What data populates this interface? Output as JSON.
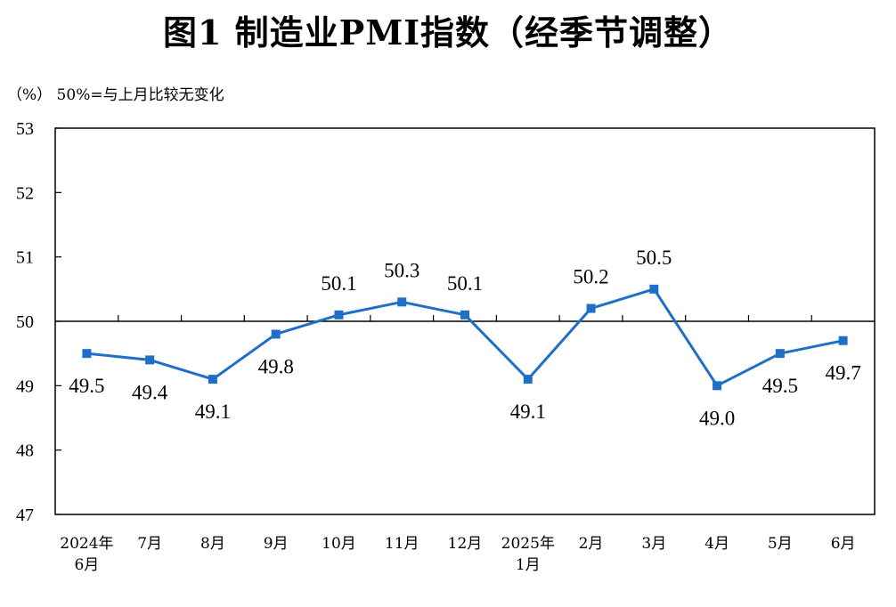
{
  "title": "图1  制造业PMI指数（经季节调整）",
  "note": "（%）  50%=与上月比较无变化",
  "chart_data": {
    "type": "line",
    "categories": [
      [
        "2024年",
        "6月"
      ],
      [
        "7月"
      ],
      [
        "8月"
      ],
      [
        "9月"
      ],
      [
        "10月"
      ],
      [
        "11月"
      ],
      [
        "12月"
      ],
      [
        "2025年",
        "1月"
      ],
      [
        "2月"
      ],
      [
        "3月"
      ],
      [
        "4月"
      ],
      [
        "5月"
      ],
      [
        "6月"
      ]
    ],
    "values": [
      49.5,
      49.4,
      49.1,
      49.8,
      50.1,
      50.3,
      50.1,
      49.1,
      50.2,
      50.5,
      49.0,
      49.5,
      49.7
    ],
    "labels": [
      "49.5",
      "49.4",
      "49.1",
      "49.8",
      "50.1",
      "50.3",
      "50.1",
      "49.1",
      "50.2",
      "50.5",
      "49.0",
      "49.5",
      "49.7"
    ],
    "ylim": [
      47,
      53
    ],
    "yticks": [
      "47",
      "48",
      "49",
      "50",
      "51",
      "52",
      "53"
    ],
    "reference_line": 50,
    "color": "#1f6fc8",
    "grid": false
  }
}
